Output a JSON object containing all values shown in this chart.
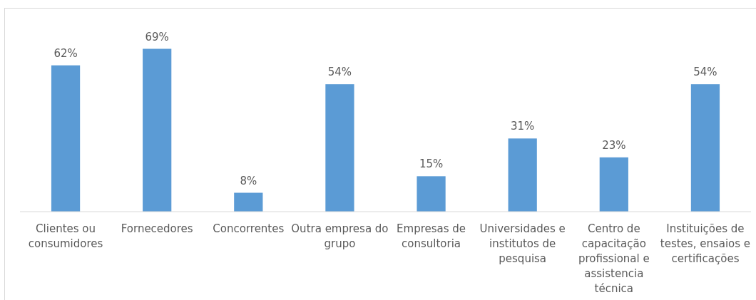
{
  "chart_data": {
    "type": "bar",
    "categories": [
      "Clientes ou consumidores",
      "Fornecedores",
      "Concorrentes",
      "Outra empresa do grupo",
      "Empresas de consultoria",
      "Universidades e institutos de pesquisa",
      "Centro de capacitação profissional e assistencia técnica",
      "Instituições de testes, ensaios e certificações"
    ],
    "values": [
      62,
      69,
      8,
      54,
      15,
      31,
      23,
      54
    ],
    "color": "#5b9bd5",
    "value_labels": [
      "62%",
      "69%",
      "8%",
      "54%",
      "15%",
      "31%",
      "23%",
      "54%"
    ],
    "tick_labels": "x"
  }
}
